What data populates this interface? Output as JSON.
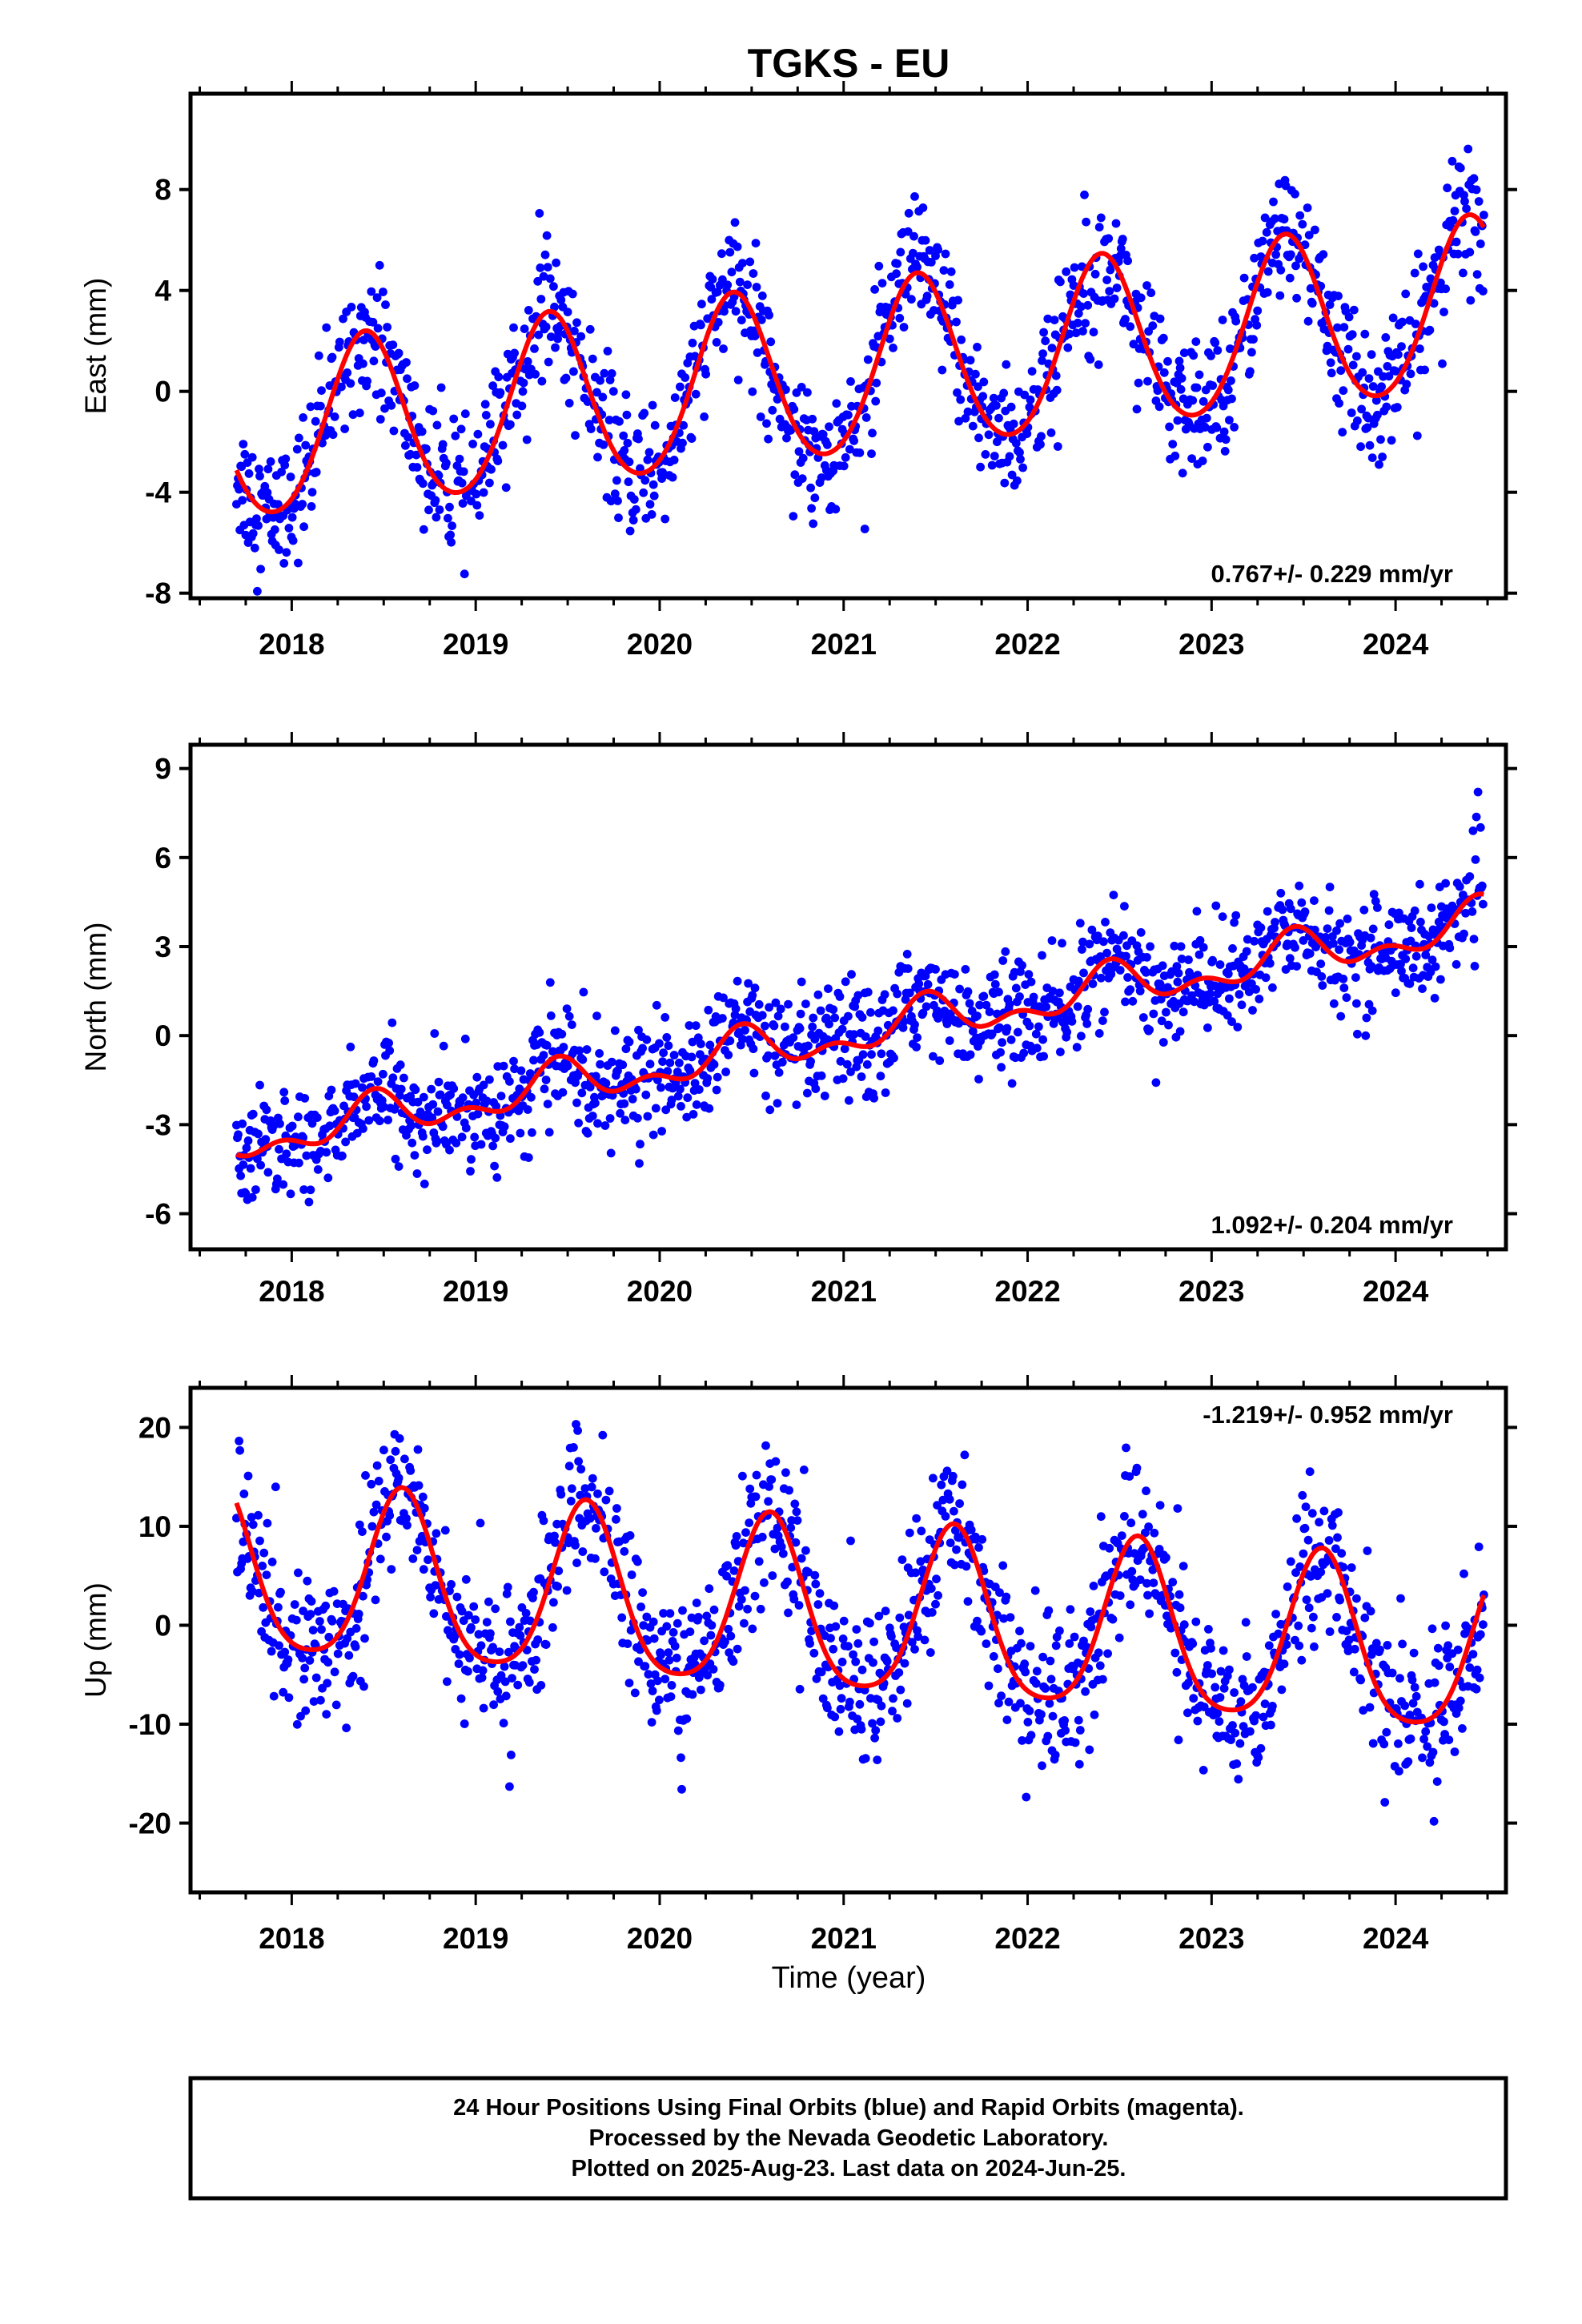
{
  "chart_data": {
    "type": "scatter",
    "title": "TGKS - EU",
    "xlabel": "Time (year)",
    "x_ticks": [
      "2018",
      "2019",
      "2020",
      "2021",
      "2022",
      "2023",
      "2024"
    ],
    "xlim": [
      2017.45,
      2024.6
    ],
    "data_start": 2017.7,
    "data_end": 2024.48,
    "colors": {
      "points": "#0000ff",
      "fit": "#ff0000"
    },
    "panels": [
      {
        "id": "east",
        "ylabel": "East (mm)",
        "ylim": [
          -8.2,
          11.8
        ],
        "yticks": [
          -8,
          -4,
          0,
          4,
          8
        ],
        "rate_label": "0.767+/- 0.229 mm/yr",
        "trend": {
          "offset_at_2021": 0.7,
          "rate_mm_per_yr": 0.767
        },
        "seasonal": {
          "amplitude": 3.4,
          "peak_year_fraction": 0.4,
          "semiannual_amplitude": 0.3
        },
        "scatter_sigma": 1.3,
        "series": [
          {
            "name": "Final Orbits",
            "values": "scatter",
            "color": "#0000ff"
          },
          {
            "name": "Fit",
            "values": "model",
            "color": "#ff0000"
          }
        ]
      },
      {
        "id": "north",
        "ylabel": "North (mm)",
        "ylim": [
          -7.2,
          9.8
        ],
        "yticks": [
          -6,
          -3,
          0,
          3,
          6,
          9
        ],
        "rate_label": "1.092+/- 0.204 mm/yr",
        "trend": {
          "offset_at_2021": 0.0,
          "rate_mm_per_yr": 1.092
        },
        "seasonal": {
          "amplitude": 0.6,
          "peak_year_fraction": 0.45,
          "semiannual_amplitude": 0.4
        },
        "scatter_sigma": 0.9,
        "series": [
          {
            "name": "Final Orbits",
            "values": "scatter",
            "color": "#0000ff"
          },
          {
            "name": "Fit",
            "values": "model",
            "color": "#ff0000"
          }
        ]
      },
      {
        "id": "up",
        "ylabel": "Up (mm)",
        "ylim": [
          -27,
          24
        ],
        "yticks": [
          -20,
          -10,
          0,
          10,
          20
        ],
        "rate_label": "-1.219+/- 0.952 mm/yr",
        "trend": {
          "offset_at_2021": 1.0,
          "rate_mm_per_yr": -1.219
        },
        "seasonal": {
          "amplitude": 8.5,
          "peak_year_fraction": 0.6,
          "semiannual_amplitude": 1.5
        },
        "scatter_sigma": 3.8,
        "series": [
          {
            "name": "Final Orbits",
            "values": "scatter",
            "color": "#0000ff"
          },
          {
            "name": "Fit",
            "values": "model",
            "color": "#ff0000"
          }
        ]
      }
    ]
  },
  "footer": {
    "line1": "24 Hour Positions Using Final Orbits (blue) and Rapid Orbits (magenta).",
    "line2": "Processed by the Nevada Geodetic Laboratory.",
    "line3": "Plotted on 2025-Aug-23. Last data on 2024-Jun-25."
  }
}
